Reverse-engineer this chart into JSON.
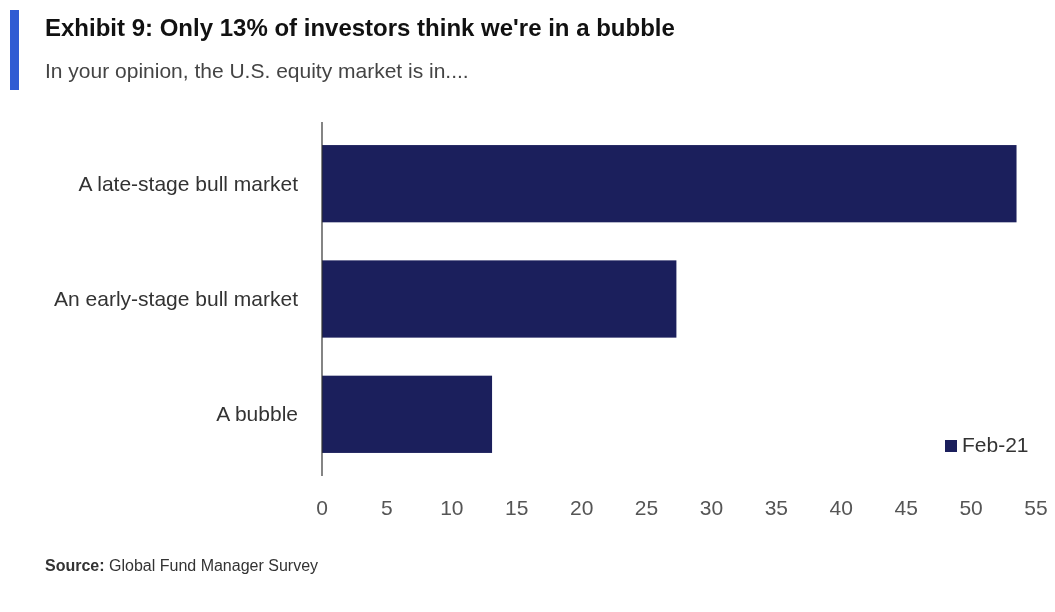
{
  "chart_data": {
    "type": "bar",
    "orientation": "horizontal",
    "title": "Exhibit 9: Only 13% of investors think we're in a bubble",
    "subtitle": "In your opinion, the U.S. equity market is in....",
    "categories": [
      "A late-stage bull market",
      "An early-stage bull market",
      "A bubble"
    ],
    "series": [
      {
        "name": "Feb-21",
        "color": "#1b1f5c",
        "values": [
          53.5,
          27.3,
          13.1
        ]
      }
    ],
    "xlim": [
      0,
      55
    ],
    "xticks": [
      0,
      5,
      10,
      15,
      20,
      25,
      30,
      35,
      40,
      45,
      50,
      55
    ],
    "legend": "bottom right",
    "grid": false,
    "annotations": [
      "Source: Global Fund Manager Survey"
    ]
  }
}
